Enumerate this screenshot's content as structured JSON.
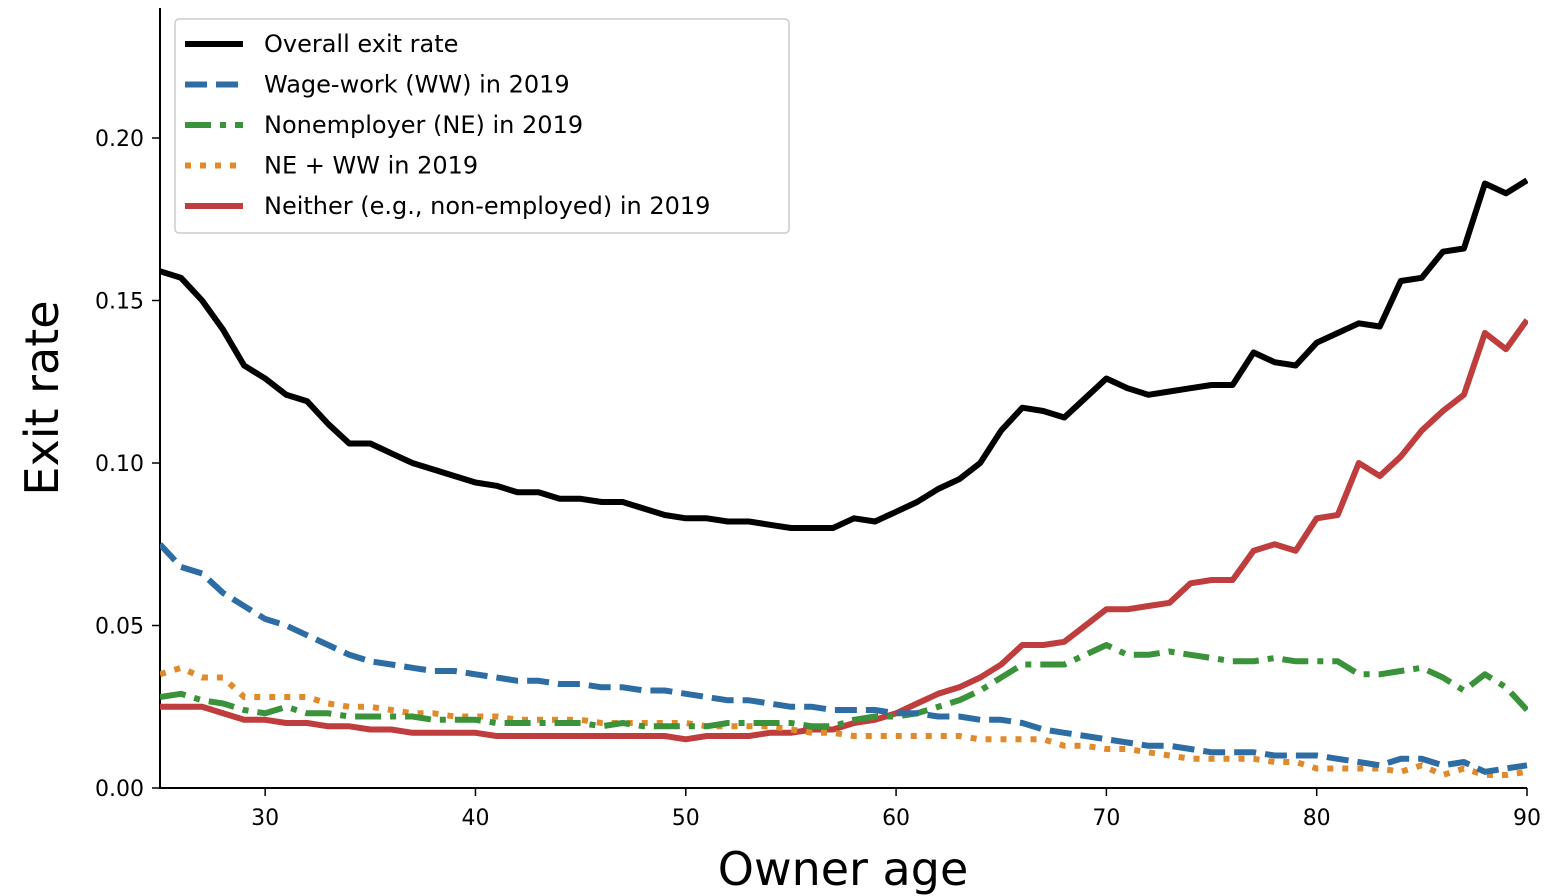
{
  "chart_data": {
    "type": "line",
    "title": "",
    "xlabel": "Owner age",
    "ylabel": "Exit rate",
    "xlim": [
      25,
      90
    ],
    "ylim": [
      0.0,
      0.24
    ],
    "xticks": [
      30,
      40,
      50,
      60,
      70,
      80,
      90
    ],
    "xtick_labels": [
      "30",
      "40",
      "50",
      "60",
      "70",
      "80",
      "90"
    ],
    "yticks": [
      0.0,
      0.05,
      0.1,
      0.15,
      0.2
    ],
    "ytick_labels": [
      "0.00",
      "0.05",
      "0.10",
      "0.15",
      "0.20"
    ],
    "grid": false,
    "legend_position": "top-left",
    "x": [
      25,
      26,
      27,
      28,
      29,
      30,
      31,
      32,
      33,
      34,
      35,
      36,
      37,
      38,
      39,
      40,
      41,
      42,
      43,
      44,
      45,
      46,
      47,
      48,
      49,
      50,
      51,
      52,
      53,
      54,
      55,
      56,
      57,
      58,
      59,
      60,
      61,
      62,
      63,
      64,
      65,
      66,
      67,
      68,
      69,
      70,
      71,
      72,
      73,
      74,
      75,
      76,
      77,
      78,
      79,
      80,
      81,
      82,
      83,
      84,
      85,
      86,
      87,
      88,
      89,
      90
    ],
    "series": [
      {
        "name": "Overall exit rate",
        "color": "#000000",
        "style": "solid",
        "values": [
          0.159,
          0.157,
          0.15,
          0.141,
          0.13,
          0.126,
          0.121,
          0.119,
          0.112,
          0.106,
          0.106,
          0.103,
          0.1,
          0.098,
          0.096,
          0.094,
          0.093,
          0.091,
          0.091,
          0.089,
          0.089,
          0.088,
          0.088,
          0.086,
          0.084,
          0.083,
          0.083,
          0.082,
          0.082,
          0.081,
          0.08,
          0.08,
          0.08,
          0.083,
          0.082,
          0.085,
          0.088,
          0.092,
          0.095,
          0.1,
          0.11,
          0.117,
          0.116,
          0.114,
          0.12,
          0.126,
          0.123,
          0.121,
          0.122,
          0.123,
          0.124,
          0.124,
          0.134,
          0.131,
          0.13,
          0.137,
          0.14,
          0.143,
          0.142,
          0.156,
          0.157,
          0.165,
          0.166,
          0.186,
          0.183,
          0.187
        ]
      },
      {
        "name": "Wage-work (WW) in 2019",
        "color": "#2e6da4",
        "style": "dashed",
        "values": [
          0.075,
          0.068,
          0.066,
          0.06,
          0.056,
          0.052,
          0.05,
          0.047,
          0.044,
          0.041,
          0.039,
          0.038,
          0.037,
          0.036,
          0.036,
          0.035,
          0.034,
          0.033,
          0.033,
          0.032,
          0.032,
          0.031,
          0.031,
          0.03,
          0.03,
          0.029,
          0.028,
          0.027,
          0.027,
          0.026,
          0.025,
          0.025,
          0.024,
          0.024,
          0.024,
          0.023,
          0.023,
          0.022,
          0.022,
          0.021,
          0.021,
          0.02,
          0.018,
          0.017,
          0.016,
          0.015,
          0.014,
          0.013,
          0.013,
          0.012,
          0.011,
          0.011,
          0.011,
          0.01,
          0.01,
          0.01,
          0.009,
          0.008,
          0.007,
          0.009,
          0.009,
          0.007,
          0.008,
          0.005,
          0.006,
          0.007
        ]
      },
      {
        "name": "Nonemployer (NE) in 2019",
        "color": "#3a923a",
        "style": "dashdot",
        "values": [
          0.028,
          0.029,
          0.027,
          0.026,
          0.024,
          0.023,
          0.025,
          0.023,
          0.023,
          0.022,
          0.022,
          0.022,
          0.022,
          0.021,
          0.021,
          0.021,
          0.02,
          0.02,
          0.02,
          0.02,
          0.02,
          0.019,
          0.02,
          0.019,
          0.019,
          0.019,
          0.019,
          0.02,
          0.02,
          0.02,
          0.02,
          0.019,
          0.019,
          0.021,
          0.022,
          0.022,
          0.023,
          0.025,
          0.027,
          0.03,
          0.034,
          0.038,
          0.038,
          0.038,
          0.041,
          0.044,
          0.041,
          0.041,
          0.042,
          0.041,
          0.04,
          0.039,
          0.039,
          0.04,
          0.039,
          0.039,
          0.039,
          0.035,
          0.035,
          0.036,
          0.037,
          0.034,
          0.03,
          0.035,
          0.031,
          0.024
        ]
      },
      {
        "name": "NE + WW in 2019",
        "color": "#e08a2c",
        "style": "dotted",
        "values": [
          0.035,
          0.037,
          0.034,
          0.034,
          0.028,
          0.028,
          0.028,
          0.028,
          0.026,
          0.025,
          0.025,
          0.024,
          0.023,
          0.023,
          0.022,
          0.022,
          0.022,
          0.021,
          0.021,
          0.021,
          0.021,
          0.02,
          0.02,
          0.02,
          0.02,
          0.02,
          0.019,
          0.019,
          0.019,
          0.019,
          0.018,
          0.017,
          0.017,
          0.016,
          0.016,
          0.016,
          0.016,
          0.016,
          0.016,
          0.015,
          0.015,
          0.015,
          0.015,
          0.013,
          0.013,
          0.012,
          0.012,
          0.011,
          0.01,
          0.009,
          0.009,
          0.009,
          0.009,
          0.008,
          0.008,
          0.006,
          0.006,
          0.006,
          0.006,
          0.005,
          0.007,
          0.004,
          0.006,
          0.004,
          0.004,
          0.005
        ]
      },
      {
        "name": "Neither (e.g., non-employed) in 2019",
        "color": "#c03d3d",
        "style": "solid",
        "values": [
          0.025,
          0.025,
          0.025,
          0.023,
          0.021,
          0.021,
          0.02,
          0.02,
          0.019,
          0.019,
          0.018,
          0.018,
          0.017,
          0.017,
          0.017,
          0.017,
          0.016,
          0.016,
          0.016,
          0.016,
          0.016,
          0.016,
          0.016,
          0.016,
          0.016,
          0.015,
          0.016,
          0.016,
          0.016,
          0.017,
          0.017,
          0.018,
          0.018,
          0.02,
          0.021,
          0.023,
          0.026,
          0.029,
          0.031,
          0.034,
          0.038,
          0.044,
          0.044,
          0.045,
          0.05,
          0.055,
          0.055,
          0.056,
          0.057,
          0.063,
          0.064,
          0.064,
          0.073,
          0.075,
          0.073,
          0.083,
          0.084,
          0.1,
          0.096,
          0.102,
          0.11,
          0.116,
          0.121,
          0.14,
          0.135,
          0.144
        ]
      }
    ]
  }
}
